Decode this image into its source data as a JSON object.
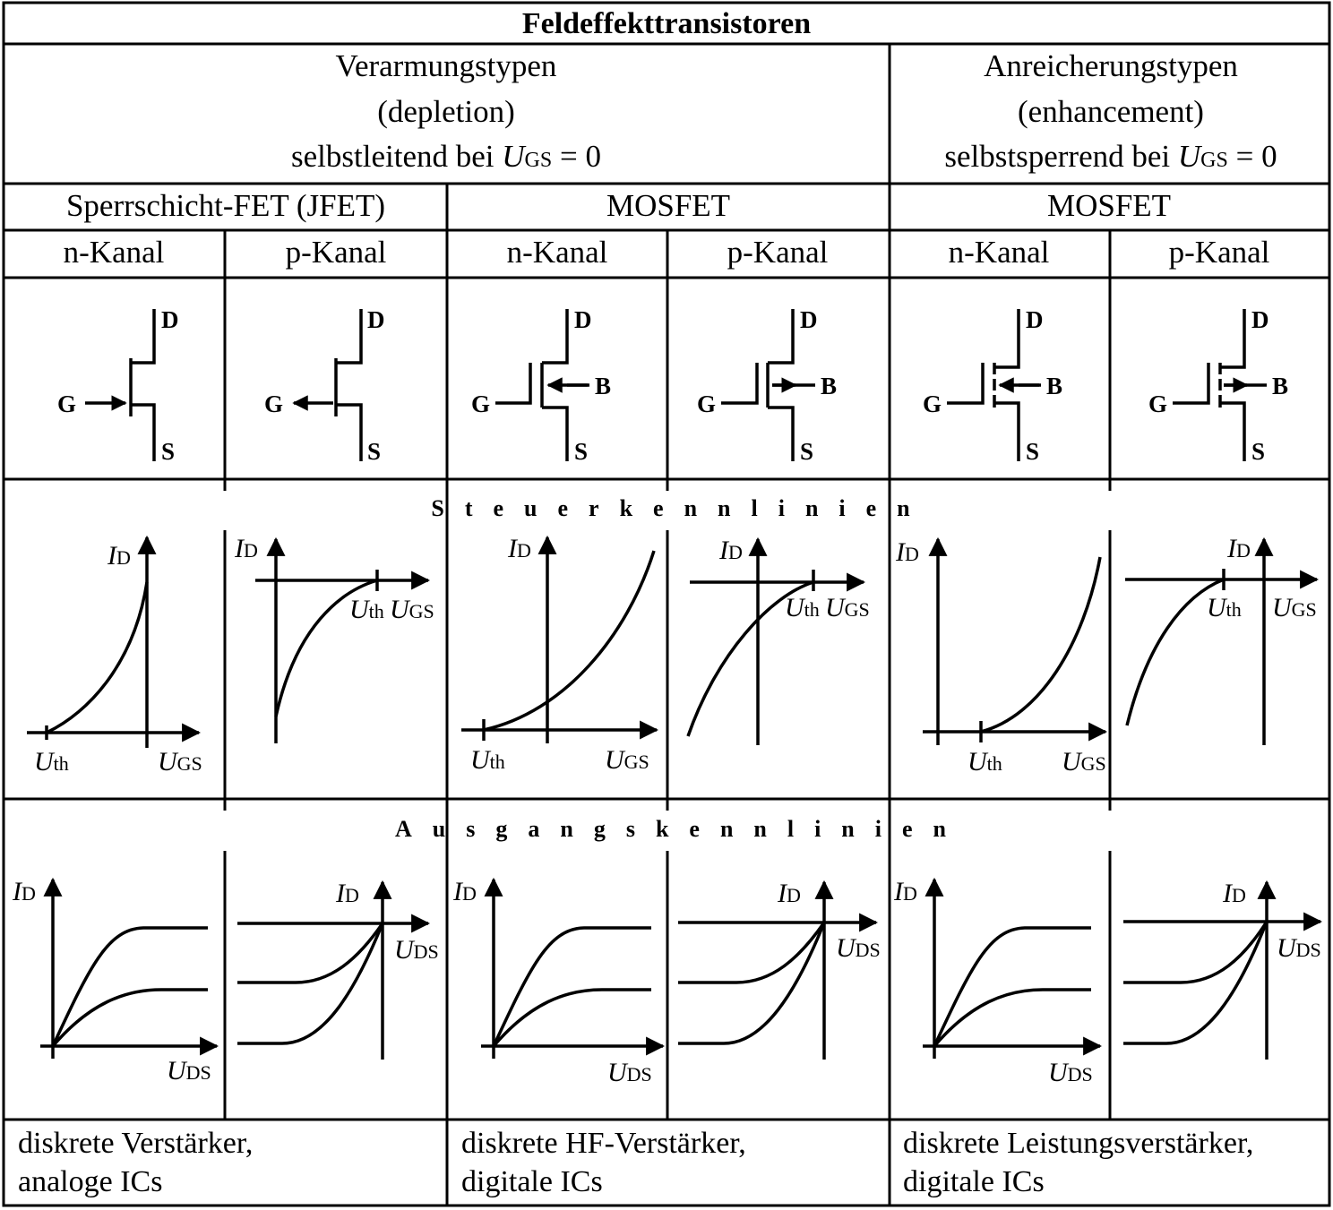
{
  "title": "Feldeffekttransistoren",
  "groups": {
    "depletion": {
      "line1": "Verarmungstypen",
      "line2": "(depletion)",
      "line3_prefix": "selbstleitend bei ",
      "u": "U",
      "u_sub": "GS",
      "line3_suffix": " = 0"
    },
    "enhancement": {
      "line1": "Anreicherungstypen",
      "line2": "(enhancement)",
      "line3_prefix": "selbstsperrend bei ",
      "u": "U",
      "u_sub": "GS",
      "line3_suffix": " = 0"
    }
  },
  "types": {
    "jfet": "Sperrschicht-FET (JFET)",
    "mosfet_dep": "MOSFET",
    "mosfet_enh": "MOSFET"
  },
  "channels": [
    "n-Kanal",
    "p-Kanal",
    "n-Kanal",
    "p-Kanal",
    "n-Kanal",
    "p-Kanal"
  ],
  "terminals": {
    "drain": "D",
    "source": "S",
    "gate": "G",
    "bulk": "B"
  },
  "sections": {
    "control": "Steuerkennlinien",
    "output": "Ausgangskennlinien"
  },
  "axes": {
    "u": "U",
    "i": "I",
    "gs": "GS",
    "ds": "DS",
    "d": "D",
    "th": "th"
  },
  "applications": [
    {
      "line1": "diskrete Verstärker,",
      "line2": "analoge ICs"
    },
    {
      "line1": "diskrete HF-Verstärker,",
      "line2": "digitale ICs"
    },
    {
      "line1": "diskrete Leistungsverstärker,",
      "line2": "digitale ICs"
    }
  ]
}
